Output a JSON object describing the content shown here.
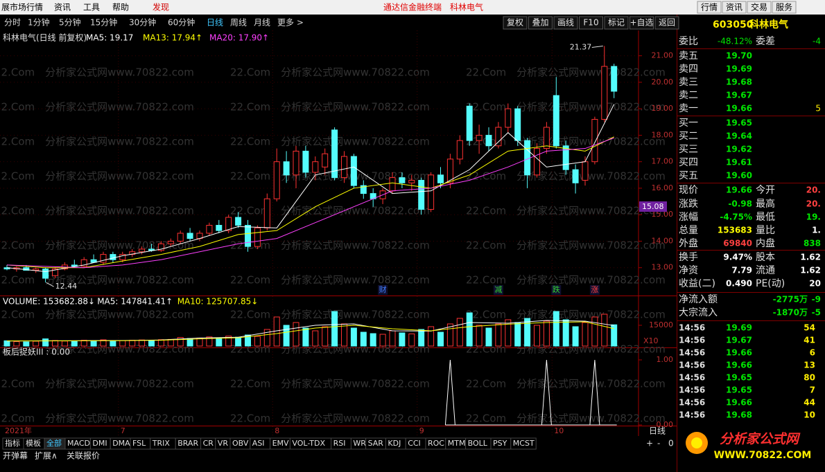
{
  "menu": {
    "left": [
      "展市场行情",
      "资讯",
      "工具",
      "帮助"
    ],
    "discover": "发现",
    "center": "通达信金融终端　科林电气",
    "right": [
      "行情",
      "资讯",
      "交易",
      "服务"
    ]
  },
  "periods": [
    "分时",
    "1分钟",
    "5分钟",
    "15分钟",
    "30分钟",
    "60分钟",
    "日线",
    "周线",
    "月线",
    "更多 >"
  ],
  "active_period_index": 6,
  "tools": [
    "复权",
    "叠加",
    "画线",
    "F10",
    "标记",
    "+自选",
    "返回"
  ],
  "watermark": "22.Com　分析家公式网www.70822.com",
  "chart": {
    "title": "科林电气(日线 前复权)",
    "ma_legend": [
      {
        "label": "MA5: 19.17",
        "color": "#ffffff"
      },
      {
        "label": "MA13: 17.94↑",
        "color": "#ffff00"
      },
      {
        "label": "MA20: 17.90↑",
        "color": "#ff40ff"
      }
    ],
    "ylim": [
      12.0,
      21.8
    ],
    "yticks": [
      {
        "value": 21,
        "label": "21.00"
      },
      {
        "value": 20,
        "label": "20.00"
      },
      {
        "value": 19,
        "label": "19.00"
      },
      {
        "value": 18,
        "label": "18.00"
      },
      {
        "value": 17,
        "label": "17.00"
      },
      {
        "value": 16,
        "label": "16.00"
      },
      {
        "value": 15,
        "label": "15.00"
      },
      {
        "value": 14,
        "label": "14.00"
      },
      {
        "value": 13,
        "label": "13.00"
      }
    ],
    "up_color": "#ff3232",
    "down_color": "#54fcfc",
    "candles": [
      [
        13.0,
        13.1,
        12.9,
        12.95
      ],
      [
        12.95,
        13.05,
        12.85,
        13.0
      ],
      [
        13.0,
        13.1,
        12.9,
        12.9
      ],
      [
        12.9,
        13.0,
        12.8,
        12.95
      ],
      [
        12.95,
        13.0,
        12.44,
        12.6
      ],
      [
        12.7,
        13.0,
        12.6,
        12.95
      ],
      [
        12.95,
        13.2,
        12.9,
        13.1
      ],
      [
        13.1,
        13.3,
        13.0,
        13.05
      ],
      [
        13.05,
        13.4,
        13.0,
        13.3
      ],
      [
        13.3,
        13.5,
        13.2,
        13.2
      ],
      [
        13.2,
        13.6,
        13.1,
        13.5
      ],
      [
        13.5,
        13.6,
        13.2,
        13.3
      ],
      [
        13.3,
        13.6,
        13.2,
        13.5
      ],
      [
        13.5,
        13.7,
        13.4,
        13.6
      ],
      [
        13.6,
        13.8,
        13.5,
        13.7
      ],
      [
        13.7,
        13.9,
        13.6,
        13.65
      ],
      [
        13.65,
        14.0,
        13.6,
        13.9
      ],
      [
        13.9,
        14.1,
        13.8,
        14.0
      ],
      [
        14.0,
        14.4,
        13.9,
        14.3
      ],
      [
        14.3,
        14.5,
        14.0,
        14.1
      ],
      [
        14.1,
        14.4,
        14.0,
        14.3
      ],
      [
        14.3,
        14.7,
        14.2,
        14.6
      ],
      [
        14.6,
        14.8,
        14.3,
        14.4
      ],
      [
        14.4,
        15.0,
        14.3,
        14.9
      ],
      [
        14.9,
        15.1,
        14.5,
        14.6
      ],
      [
        14.6,
        14.8,
        13.6,
        13.8
      ],
      [
        13.8,
        14.6,
        13.7,
        14.5
      ],
      [
        14.5,
        15.8,
        14.4,
        15.6
      ],
      [
        15.6,
        17.5,
        15.5,
        17.0
      ],
      [
        17.0,
        17.4,
        16.2,
        16.5
      ],
      [
        16.5,
        17.6,
        16.0,
        17.4
      ],
      [
        17.4,
        17.6,
        16.4,
        16.6
      ],
      [
        16.6,
        17.2,
        16.3,
        17.0
      ],
      [
        16.8,
        17.5,
        16.5,
        17.3
      ],
      [
        18.2,
        18.3,
        16.3,
        16.4
      ],
      [
        16.4,
        17.4,
        16.2,
        17.2
      ],
      [
        17.2,
        17.3,
        16.0,
        16.1
      ],
      [
        16.1,
        16.3,
        15.6,
        15.8
      ],
      [
        15.8,
        16.0,
        15.3,
        15.6
      ],
      [
        15.6,
        16.0,
        15.4,
        15.9
      ],
      [
        15.9,
        16.6,
        15.8,
        16.4
      ],
      [
        16.4,
        16.6,
        16.0,
        16.2
      ],
      [
        16.2,
        16.5,
        15.9,
        16.3
      ],
      [
        16.3,
        16.4,
        15.0,
        15.2
      ],
      [
        15.2,
        16.6,
        15.1,
        16.5
      ],
      [
        16.5,
        16.8,
        16.0,
        16.2
      ],
      [
        16.2,
        17.3,
        16.0,
        17.1
      ],
      [
        17.1,
        18.0,
        16.9,
        17.8
      ],
      [
        19.1,
        19.2,
        17.6,
        17.8
      ],
      [
        17.8,
        18.4,
        17.3,
        18.0
      ],
      [
        18.0,
        18.3,
        17.4,
        17.6
      ],
      [
        17.6,
        18.5,
        17.5,
        18.3
      ],
      [
        18.3,
        19.2,
        18.1,
        19.0
      ],
      [
        19.0,
        19.1,
        17.6,
        17.8
      ],
      [
        17.8,
        17.9,
        16.0,
        16.5
      ],
      [
        16.5,
        17.7,
        16.4,
        17.5
      ],
      [
        17.5,
        18.5,
        17.3,
        18.3
      ],
      [
        19.5,
        20.2,
        17.5,
        17.6
      ],
      [
        17.6,
        17.8,
        16.5,
        16.7
      ],
      [
        16.7,
        16.9,
        15.8,
        16.2
      ],
      [
        16.3,
        17.2,
        16.1,
        17.0
      ],
      [
        17.0,
        18.7,
        16.9,
        18.6
      ],
      [
        18.6,
        21.37,
        18.5,
        20.6
      ],
      [
        20.6,
        20.7,
        19.4,
        19.66
      ]
    ],
    "ma_index": [
      0,
      4,
      8,
      12,
      16,
      20,
      24,
      28,
      32,
      36,
      40,
      44,
      48,
      52,
      56,
      60,
      63
    ],
    "ma_lines": [
      [
        13.0,
        12.85,
        13.1,
        13.45,
        13.7,
        14.1,
        14.55,
        14.5,
        16.5,
        16.8,
        15.8,
        15.9,
        16.7,
        18.1,
        16.8,
        17.0,
        19.17
      ],
      [
        13.1,
        13.0,
        13.0,
        13.25,
        13.5,
        13.8,
        14.25,
        14.4,
        15.3,
        16.0,
        16.2,
        16.0,
        16.5,
        17.4,
        17.6,
        17.4,
        17.94
      ],
      [
        13.1,
        13.05,
        13.0,
        13.1,
        13.3,
        13.6,
        13.9,
        14.1,
        14.7,
        15.3,
        15.9,
        16.0,
        16.3,
        16.8,
        17.4,
        17.5,
        17.9
      ]
    ],
    "high_label": "21.37",
    "high_index": 62,
    "low_label": "12.44",
    "low_index": 4,
    "price_marker": "15.08",
    "events": [
      {
        "label": "财",
        "index": 39,
        "color": "#4080ff"
      },
      {
        "label": "减",
        "index": 51,
        "color": "#30d030"
      },
      {
        "label": "跌",
        "index": 57,
        "color": "#30d030"
      },
      {
        "label": "涨",
        "index": 61,
        "color": "#ff4040"
      }
    ],
    "months": [
      {
        "label": "2021年",
        "index": 0
      },
      {
        "label": "7",
        "index": 12
      },
      {
        "label": "8",
        "index": 28
      },
      {
        "label": "9",
        "index": 43
      },
      {
        "label": "10",
        "index": 57
      }
    ]
  },
  "volume": {
    "legend": [
      {
        "label": "VOLUME: 153682.88↓",
        "color": "#ffffff"
      },
      {
        "label": "MA5: 147841.41↑",
        "color": "#ffffff"
      },
      {
        "label": "MA10: 125707.85↓",
        "color": "#ffff00"
      }
    ],
    "ylim": [
      0,
      350000
    ],
    "yticks": [
      {
        "value": 150000,
        "label": "15000"
      }
    ],
    "unit": "X10",
    "values": [
      38000,
      32000,
      30000,
      35000,
      52000,
      40000,
      36000,
      34000,
      42000,
      38000,
      45000,
      36000,
      40000,
      42000,
      44000,
      38000,
      46000,
      48000,
      62000,
      55000,
      58000,
      66000,
      60000,
      72000,
      64000,
      80000,
      70000,
      120000,
      210000,
      150000,
      170000,
      130000,
      110000,
      140000,
      250000,
      160000,
      130000,
      100000,
      90000,
      85000,
      110000,
      95000,
      88000,
      120000,
      140000,
      100000,
      160000,
      200000,
      240000,
      150000,
      130000,
      160000,
      190000,
      170000,
      200000,
      150000,
      180000,
      250000,
      190000,
      140000,
      170000,
      210000,
      230000,
      153683
    ],
    "ma_lines": [
      [
        36000,
        38000,
        39000,
        40000,
        44000,
        58000,
        64000,
        110000,
        150000,
        160000,
        110000,
        108000,
        170000,
        165000,
        185000,
        180000,
        147841
      ],
      [
        37000,
        37000,
        38000,
        39000,
        42000,
        52000,
        60000,
        90000,
        130000,
        150000,
        125000,
        110000,
        140000,
        158000,
        170000,
        175000,
        125708
      ]
    ]
  },
  "indicator": {
    "legend": "板后捉妖III : 0.00",
    "ylim": [
      0,
      1
    ],
    "yticks": [
      {
        "value": 1,
        "label": "1.00"
      },
      {
        "value": 0,
        "label": "0.00"
      }
    ],
    "values": [
      0,
      0,
      0,
      0,
      0,
      0,
      0,
      0,
      0,
      0,
      0,
      0,
      0,
      0,
      0,
      0,
      0,
      0,
      0,
      0,
      0,
      0,
      0,
      0,
      0,
      0,
      0,
      0,
      0,
      0,
      0,
      0,
      0,
      0,
      0,
      0,
      0,
      0,
      0,
      0,
      0,
      0,
      0,
      0,
      0,
      0,
      1,
      0,
      0,
      0,
      0,
      0,
      0,
      0,
      0,
      0,
      1,
      0,
      0,
      0,
      0,
      1,
      0,
      0
    ]
  },
  "quote": {
    "code": "603050",
    "name": "科林电气",
    "ratio": [
      "委比",
      "-48.12%",
      "委差",
      "-4"
    ],
    "book": [
      [
        "卖五",
        "19.70",
        ""
      ],
      [
        "卖四",
        "19.69",
        ""
      ],
      [
        "卖三",
        "19.68",
        ""
      ],
      [
        "卖二",
        "19.67",
        ""
      ],
      [
        "卖一",
        "19.66",
        "5"
      ],
      [
        "买一",
        "19.65",
        ""
      ],
      [
        "买二",
        "19.64",
        ""
      ],
      [
        "买三",
        "19.62",
        ""
      ],
      [
        "买四",
        "19.61",
        ""
      ],
      [
        "买五",
        "19.60",
        ""
      ]
    ],
    "stats": [
      [
        [
          "现价",
          "19.66",
          "#00e600"
        ],
        [
          "今开",
          "20.",
          "#ff4040"
        ]
      ],
      [
        [
          "涨跌",
          "-0.98",
          "#00e600"
        ],
        [
          "最高",
          "20.",
          "#ff4040"
        ]
      ],
      [
        [
          "涨幅",
          "-4.75%",
          "#00e600"
        ],
        [
          "最低",
          "19.",
          "#00e600"
        ]
      ],
      [
        [
          "总量",
          "153683",
          "#ffff00"
        ],
        [
          "量比",
          "1.",
          "#ffffff"
        ]
      ],
      [
        [
          "外盘",
          "69840",
          "#ff4040"
        ],
        [
          "内盘",
          "838",
          "#00e600"
        ]
      ],
      [
        [
          "换手",
          "9.47%",
          "#ffffff"
        ],
        [
          "股本",
          "1.62",
          "#ffffff"
        ]
      ],
      [
        [
          "净资",
          "7.79",
          "#ffffff"
        ],
        [
          "流通",
          "1.62",
          "#ffffff"
        ]
      ],
      [
        [
          "收益(二)",
          "0.490",
          "#ffffff"
        ],
        [
          "PE(动)",
          "20",
          "#ffffff"
        ]
      ],
      [
        [
          "净流入额",
          "-2775万",
          "#00e600"
        ],
        [
          "",
          "-9",
          "#00e600"
        ]
      ],
      [
        [
          "大宗流入",
          "-1870万",
          "#00e600"
        ],
        [
          "",
          "-5",
          "#00e600"
        ]
      ]
    ],
    "ticks": [
      [
        "14:56",
        "19.69",
        "54"
      ],
      [
        "14:56",
        "19.67",
        "41"
      ],
      [
        "14:56",
        "19.66",
        "6"
      ],
      [
        "14:56",
        "19.66",
        "13"
      ],
      [
        "14:56",
        "19.65",
        "80"
      ],
      [
        "14:56",
        "19.65",
        "7"
      ],
      [
        "14:56",
        "19.66",
        "44"
      ],
      [
        "14:56",
        "19.68",
        "10"
      ]
    ]
  },
  "tabs": [
    "指标",
    "模板",
    "全部",
    "MACD",
    "DMI",
    "DMA",
    "FSL",
    "TRIX",
    "BRAR",
    "CR",
    "VR",
    "OBV",
    "ASI",
    "EMV",
    "VOL-TDX",
    "RSI",
    "WR",
    "SAR",
    "KDJ",
    "CCI",
    "ROC",
    "MTM",
    "BOLL",
    "PSY",
    "MCST"
  ],
  "tab_active_index": 2,
  "bottom_links": [
    "开弹幕",
    "扩展∧",
    "关联报价"
  ],
  "bottom_period": "日线",
  "zoom": [
    "+",
    "-",
    "0"
  ],
  "logo": {
    "name": "分析家公式网",
    "url": "WWW.70822.COM"
  }
}
